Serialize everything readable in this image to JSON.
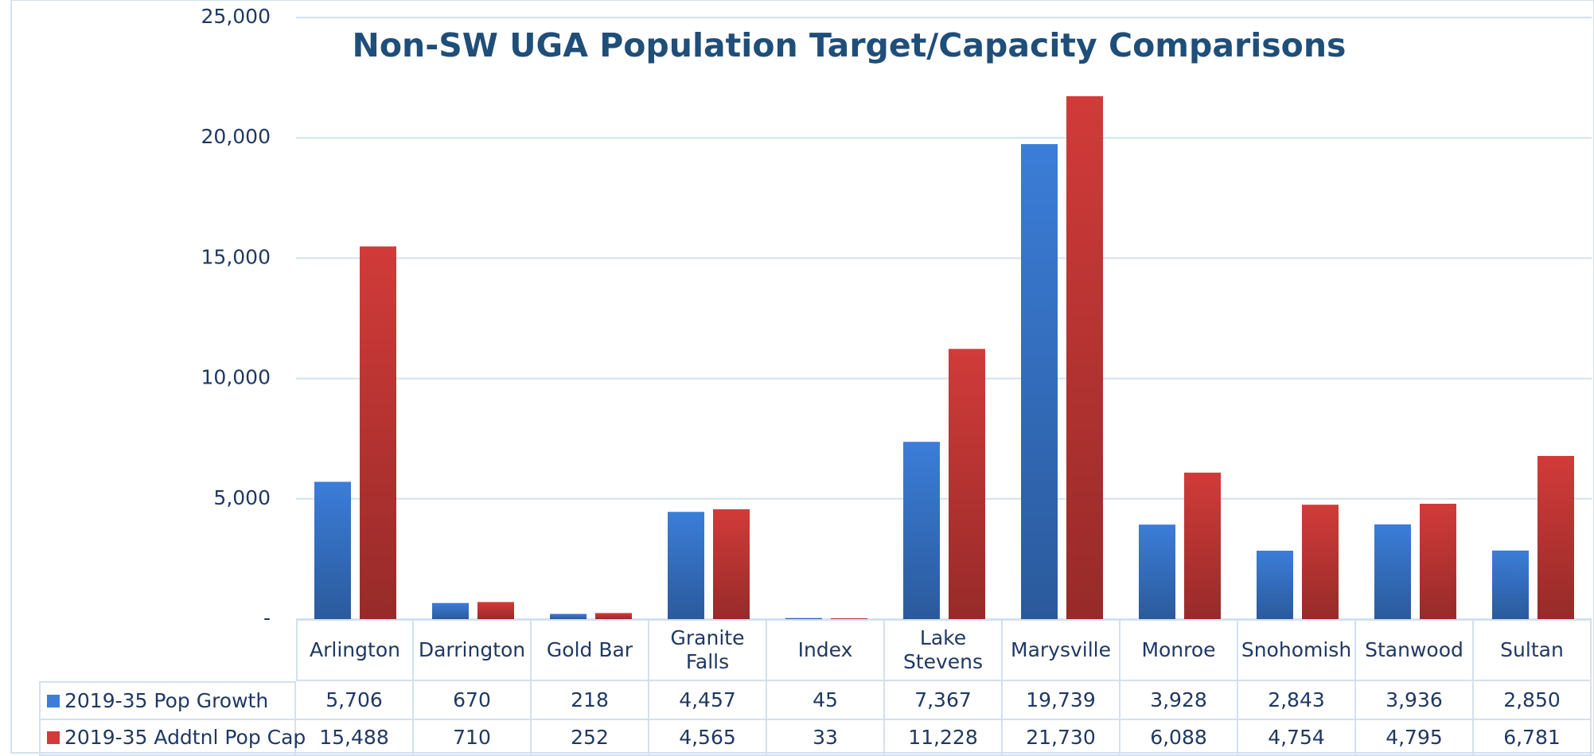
{
  "chart_data": {
    "type": "bar",
    "title": "Non-SW UGA Population Target/Capacity Comparisons",
    "categories": [
      "Arlington",
      "Darrington",
      "Gold Bar",
      "Granite Falls",
      "Index",
      "Lake Stevens",
      "Marysville",
      "Monroe",
      "Snohomish",
      "Stanwood",
      "Sultan"
    ],
    "series": [
      {
        "name": "2019-35 Pop Growth",
        "color": "#3b7dd8",
        "values": [
          5706,
          670,
          218,
          4457,
          45,
          7367,
          19739,
          3928,
          2843,
          3936,
          2850
        ],
        "value_labels": [
          "5,706",
          "670",
          "218",
          "4,457",
          "45",
          "7,367",
          "19,739",
          "3,928",
          "2,843",
          "3,936",
          "2,850"
        ]
      },
      {
        "name": "2019-35 Addtnl Pop Cap",
        "color": "#d13b39",
        "values": [
          15488,
          710,
          252,
          4565,
          33,
          11228,
          21730,
          6088,
          4754,
          4795,
          6781
        ],
        "value_labels": [
          "15,488",
          "710",
          "252",
          "4,565",
          "33",
          "11,228",
          "21,730",
          "6,088",
          "4,754",
          "4,795",
          "6,781"
        ]
      }
    ],
    "ylim": [
      0,
      25000
    ],
    "yticks": [
      {
        "value": 0,
        "label": "-"
      },
      {
        "value": 5000,
        "label": "5,000"
      },
      {
        "value": 10000,
        "label": "10,000"
      },
      {
        "value": 15000,
        "label": "15,000"
      },
      {
        "value": 20000,
        "label": "20,000"
      },
      {
        "value": 25000,
        "label": "25,000"
      }
    ],
    "grid": true
  }
}
